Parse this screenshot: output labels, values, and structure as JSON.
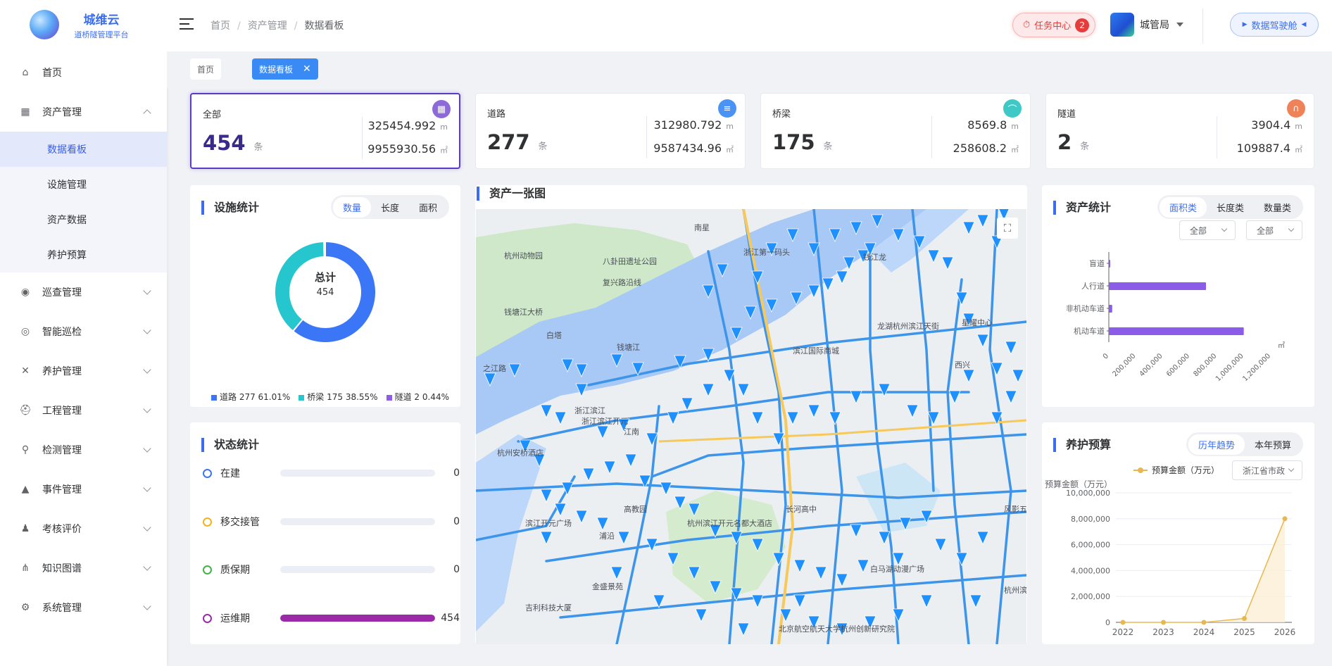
{
  "brand": {
    "title": "城维云",
    "subtitle": "道桥隧管理平台"
  },
  "sidebar": {
    "items": [
      {
        "label": "首页",
        "icon": "home-icon",
        "expandable": false
      },
      {
        "label": "资产管理",
        "icon": "assets-icon",
        "expandable": true,
        "expanded": true,
        "children": [
          {
            "label": "数据看板",
            "active": true
          },
          {
            "label": "设施管理"
          },
          {
            "label": "资产数据"
          },
          {
            "label": "养护预算"
          }
        ]
      },
      {
        "label": "巡查管理",
        "icon": "location-icon",
        "expandable": true
      },
      {
        "label": "智能巡检",
        "icon": "ai-icon",
        "expandable": true
      },
      {
        "label": "养护管理",
        "icon": "tools-icon",
        "expandable": true
      },
      {
        "label": "工程管理",
        "icon": "helmet-icon",
        "expandable": true
      },
      {
        "label": "检测管理",
        "icon": "search-icon",
        "expandable": true
      },
      {
        "label": "事件管理",
        "icon": "event-icon",
        "expandable": true
      },
      {
        "label": "考核评价",
        "icon": "evaluate-icon",
        "expandable": true
      },
      {
        "label": "知识图谱",
        "icon": "graph-icon",
        "expandable": true
      },
      {
        "label": "系统管理",
        "icon": "gear-icon",
        "expandable": true
      }
    ]
  },
  "header": {
    "breadcrumb": [
      "首页",
      "资产管理",
      "数据看板"
    ],
    "task_label": "任务中心",
    "task_count": "2",
    "user_name": "城管局",
    "cockpit_label": "数据驾驶舱"
  },
  "tags": [
    {
      "label": "首页"
    },
    {
      "label": "数据看板"
    }
  ],
  "stats": [
    {
      "label": "全部",
      "count": "454",
      "unit": "条",
      "length": "325454.992",
      "length_unit": "m",
      "area": "9955930.56",
      "area_unit": "㎡",
      "icon_color": "#8c6ad8"
    },
    {
      "label": "道路",
      "count": "277",
      "unit": "条",
      "length": "312980.792",
      "length_unit": "m",
      "area": "9587434.96",
      "area_unit": "㎡",
      "icon_color": "#4a92f3"
    },
    {
      "label": "桥梁",
      "count": "175",
      "unit": "条",
      "length": "8569.8",
      "length_unit": "m",
      "area": "258608.2",
      "area_unit": "㎡",
      "icon_color": "#3ec9c6"
    },
    {
      "label": "隧道",
      "count": "2",
      "unit": "条",
      "length": "3904.4",
      "length_unit": "m",
      "area": "109887.4",
      "area_unit": "㎡",
      "icon_color": "#f0825a"
    }
  ],
  "facility": {
    "title": "设施统计",
    "tabs": [
      "数量",
      "长度",
      "面积"
    ],
    "active_tab": 0,
    "center_title": "总计",
    "center_value": "454",
    "legend": [
      {
        "text": "道路 277 61.01%",
        "color": "#3a76f5"
      },
      {
        "text": "桥梁 175 38.55%",
        "color": "#26c6cf"
      },
      {
        "text": "隧道 2 0.44%",
        "color": "#8f5cea"
      }
    ]
  },
  "status": {
    "title": "状态统计",
    "rows": [
      {
        "label": "在建",
        "value": "0",
        "fraction": 0,
        "color": "#3a76f5"
      },
      {
        "label": "移交接管",
        "value": "0",
        "fraction": 0,
        "color": "#f5b21c"
      },
      {
        "label": "质保期",
        "value": "0",
        "fraction": 0,
        "color": "#41b349"
      },
      {
        "label": "运维期",
        "value": "454",
        "fraction": 1,
        "color": "#9a2aa8"
      }
    ]
  },
  "map": {
    "title": "资产一张图",
    "labels": [
      "南星",
      "杭州动物园",
      "八卦田遗址公园",
      "复兴路沿线",
      "浙江第一码头",
      "钱江龙",
      "钱塘江大桥",
      "白塔",
      "钱塘江",
      "之江路",
      "龙湖杭州滨江天街",
      "星耀中心",
      "滨江国际商城",
      "西兴",
      "浙江滨江",
      "浙江滨江开元",
      "杭州安桥酒店",
      "江南",
      "长河高中",
      "高教园",
      "浦沿",
      "杭州滨江开元名都大酒店",
      "滨江开元广场",
      "白马湖动漫广场",
      "金盛景苑",
      "吉利科技大厦",
      "北京航空航天大学杭州创新研究院",
      "杭州滨",
      "风影五造"
    ]
  },
  "asset_stats": {
    "title": "资产统计",
    "tabs": [
      "面积类",
      "长度类",
      "数量类"
    ],
    "active_tab": 0,
    "filters": [
      "全部",
      "全部"
    ]
  },
  "budget": {
    "title": "养护预算",
    "tabs": [
      "历年趋势",
      "本年预算"
    ],
    "active_tab": 0,
    "region": "浙江省市政"
  },
  "chart_data": [
    {
      "type": "pie",
      "title": "总计",
      "categories": [
        "道路",
        "桥梁",
        "隧道"
      ],
      "values": [
        277,
        175,
        2
      ],
      "colors": [
        "#3a76f5",
        "#26c6cf",
        "#8f5cea"
      ]
    },
    {
      "type": "bar",
      "orientation": "horizontal",
      "categories": [
        "机动车道",
        "非机动车道",
        "人行道",
        "盲道"
      ],
      "values": [
        1000000,
        25000,
        720000,
        3000
      ],
      "xlim": [
        0,
        1200000
      ],
      "xticks": [
        "0",
        "200,000",
        "400,000",
        "600,000",
        "800,000",
        "1,000,000",
        "1,200,000"
      ],
      "unit": "㎡",
      "color": "#8a5ce8"
    },
    {
      "type": "area",
      "x": [
        "2022",
        "2023",
        "2024",
        "2025",
        "2026"
      ],
      "series": [
        {
          "name": "预算金额（万元）",
          "values": [
            0,
            0,
            0,
            300000,
            8000000
          ]
        }
      ],
      "ylabel": "预算金额（万元）",
      "ylim": [
        0,
        10000000
      ],
      "yticks": [
        "0",
        "2,000,000",
        "4,000,000",
        "6,000,000",
        "8,000,000",
        "10,000,000"
      ],
      "color": "#e8b850"
    }
  ]
}
